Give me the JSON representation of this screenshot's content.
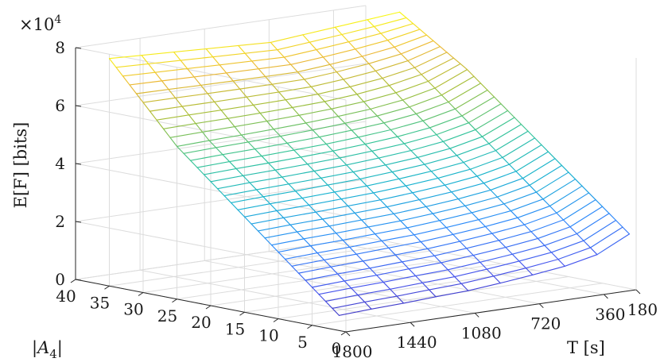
{
  "chart_data": {
    "type": "mesh3d",
    "title": "",
    "xlabel": "T [s]",
    "ylabel": "|A4|",
    "zlabel": "E[F] [bits]",
    "z_exponent_label": "×10^4",
    "x_ticks": [
      180,
      360,
      720,
      1080,
      1440,
      1800
    ],
    "y_ticks": [
      0,
      5,
      10,
      15,
      20,
      25,
      30,
      35,
      40
    ],
    "z_ticks": [
      0,
      2,
      4,
      6,
      8
    ],
    "x_tick_labels": [
      "180",
      "360",
      "720",
      "1080",
      "1440",
      "1800"
    ],
    "y_tick_labels": [
      "0",
      "5",
      "10",
      "15",
      "20",
      "25",
      "30",
      "35",
      "40"
    ],
    "z_tick_labels": [
      "0",
      "2",
      "4",
      "6",
      "8"
    ],
    "zlim": [
      0,
      80000
    ],
    "colormap": "parula",
    "grid": true,
    "surface": {
      "T_values": [
        180,
        360,
        540,
        720,
        900,
        1080,
        1260,
        1440,
        1620,
        1800
      ],
      "A4_values": [
        1,
        2,
        3,
        4,
        5,
        6,
        7,
        8,
        9,
        10,
        11,
        12,
        13,
        14,
        15,
        16,
        17,
        18,
        19,
        20,
        21,
        22,
        23,
        24,
        25,
        26,
        27,
        28,
        29,
        30,
        31,
        32,
        33,
        34,
        35
      ],
      "EF_at_A4_1": [
        18800,
        13300,
        10900,
        9500,
        8300,
        7300,
        6800,
        6200,
        5800,
        5200
      ],
      "EF_at_A4_25": [
        64700,
        59900,
        57400,
        55900,
        55000,
        54300,
        53800,
        53400,
        53100,
        52700
      ],
      "EF_at_A4_35": [
        80000,
        79000,
        78000,
        77000,
        76000,
        76500,
        77000,
        77500,
        78000,
        78500
      ]
    }
  }
}
